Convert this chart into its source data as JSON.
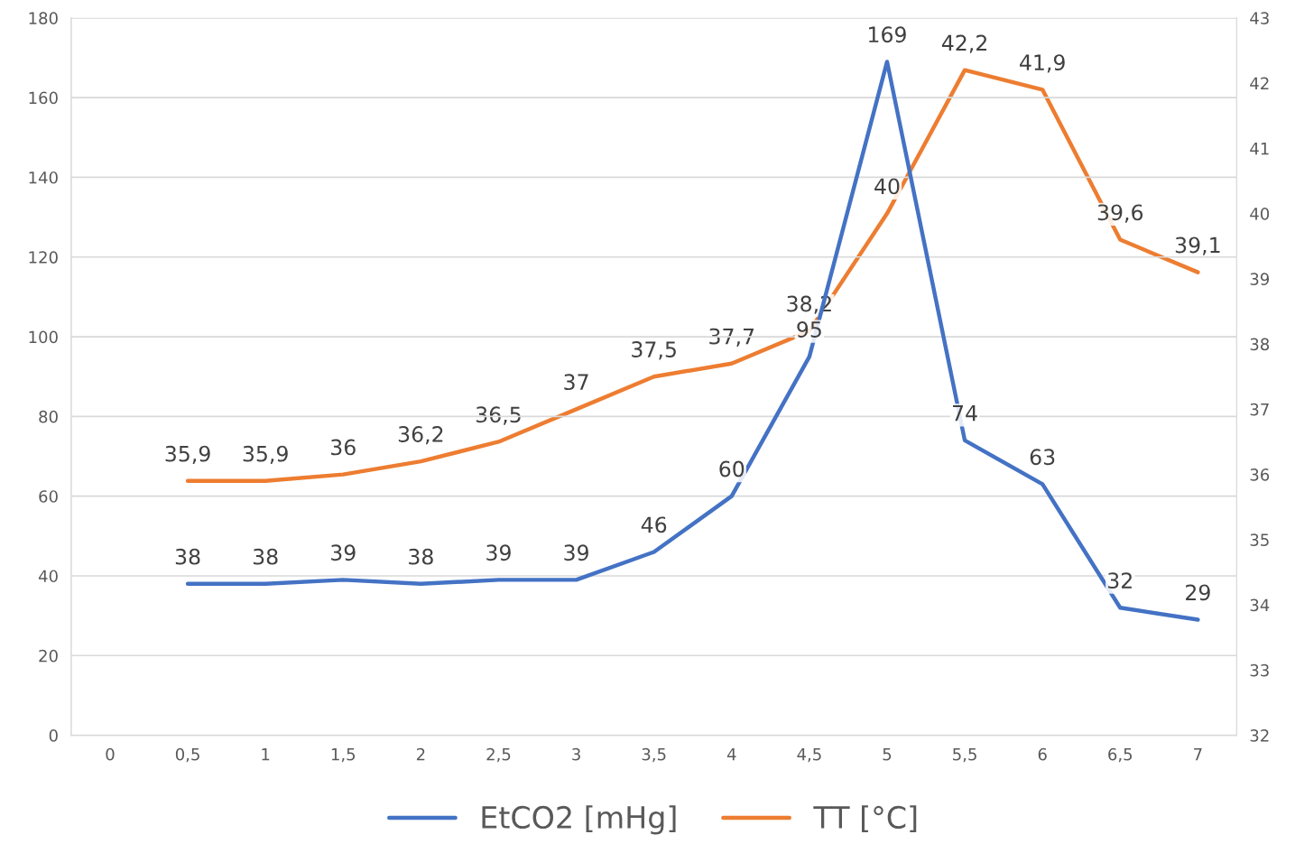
{
  "chart_data": {
    "type": "line",
    "categories": [
      "0",
      "0,5",
      "1",
      "1,5",
      "2",
      "2,5",
      "3",
      "3,5",
      "4",
      "4,5",
      "5",
      "5,5",
      "6",
      "6,5",
      "7"
    ],
    "series": [
      {
        "name": "EtCO2 [mHg]",
        "color": "#4472c4",
        "values": [
          null,
          38,
          38,
          39,
          38,
          39,
          39,
          46,
          60,
          95,
          169,
          74,
          63,
          32,
          29
        ],
        "value_labels": [
          null,
          "38",
          "38",
          "39",
          "38",
          "39",
          "39",
          "46",
          "60",
          "95",
          "169",
          "74",
          "63",
          "32",
          "29"
        ]
      },
      {
        "name": "TT [°C]",
        "color": "#ed7d31",
        "axis": "y2",
        "values": [
          null,
          35.9,
          35.9,
          36,
          36.2,
          36.5,
          37,
          37.5,
          37.7,
          38.2,
          40,
          42.2,
          41.9,
          39.6,
          39.1
        ],
        "value_labels": [
          null,
          "35,9",
          "35,9",
          "36",
          "36,2",
          "36,5",
          "37",
          "37,5",
          "37,7",
          "38,2",
          "40",
          "42,2",
          "41,9",
          "39,6",
          "39,1"
        ]
      }
    ],
    "ylim": [
      0,
      180
    ],
    "yticks": [
      0,
      20,
      40,
      60,
      80,
      100,
      120,
      140,
      160,
      180
    ],
    "y2lim": [
      32,
      43
    ],
    "y2ticks": [
      32,
      33,
      34,
      35,
      36,
      37,
      38,
      39,
      40,
      41,
      42,
      43
    ],
    "grid": "y",
    "legend": "bottom",
    "marker": "none",
    "line_style": "solid"
  }
}
